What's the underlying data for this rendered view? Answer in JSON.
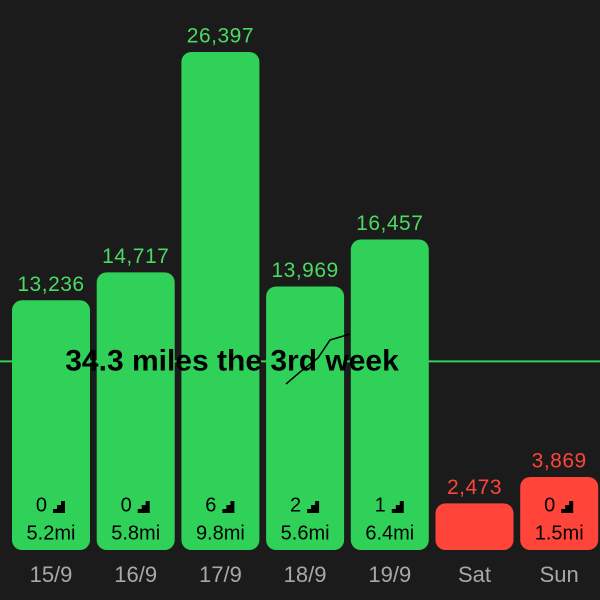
{
  "chart_data": {
    "type": "bar",
    "categories": [
      "15/9",
      "16/9",
      "17/9",
      "18/9",
      "19/9",
      "Sat",
      "Sun"
    ],
    "values": [
      13236,
      14717,
      26397,
      13969,
      16457,
      2473,
      3869
    ],
    "value_labels": [
      "13,236",
      "14,717",
      "26,397",
      "13,969",
      "16,457",
      "2,473",
      "3,869"
    ],
    "colors": [
      "#30d158",
      "#30d158",
      "#30d158",
      "#30d158",
      "#30d158",
      "#ff453a",
      "#ff453a"
    ],
    "label_colors": [
      "#4cd964",
      "#4cd964",
      "#4cd964",
      "#4cd964",
      "#4cd964",
      "#ff453a",
      "#ff453a"
    ],
    "floors": [
      0,
      0,
      6,
      2,
      1,
      null,
      0
    ],
    "distances": [
      "5.2mi",
      "5.8mi",
      "9.8mi",
      "5.6mi",
      "6.4mi",
      null,
      "1.5mi"
    ],
    "goal_line": 10000,
    "goal_color": "#30d158",
    "annotation": "34.3 miles the 3rd week",
    "ylim": [
      0,
      28000
    ]
  }
}
